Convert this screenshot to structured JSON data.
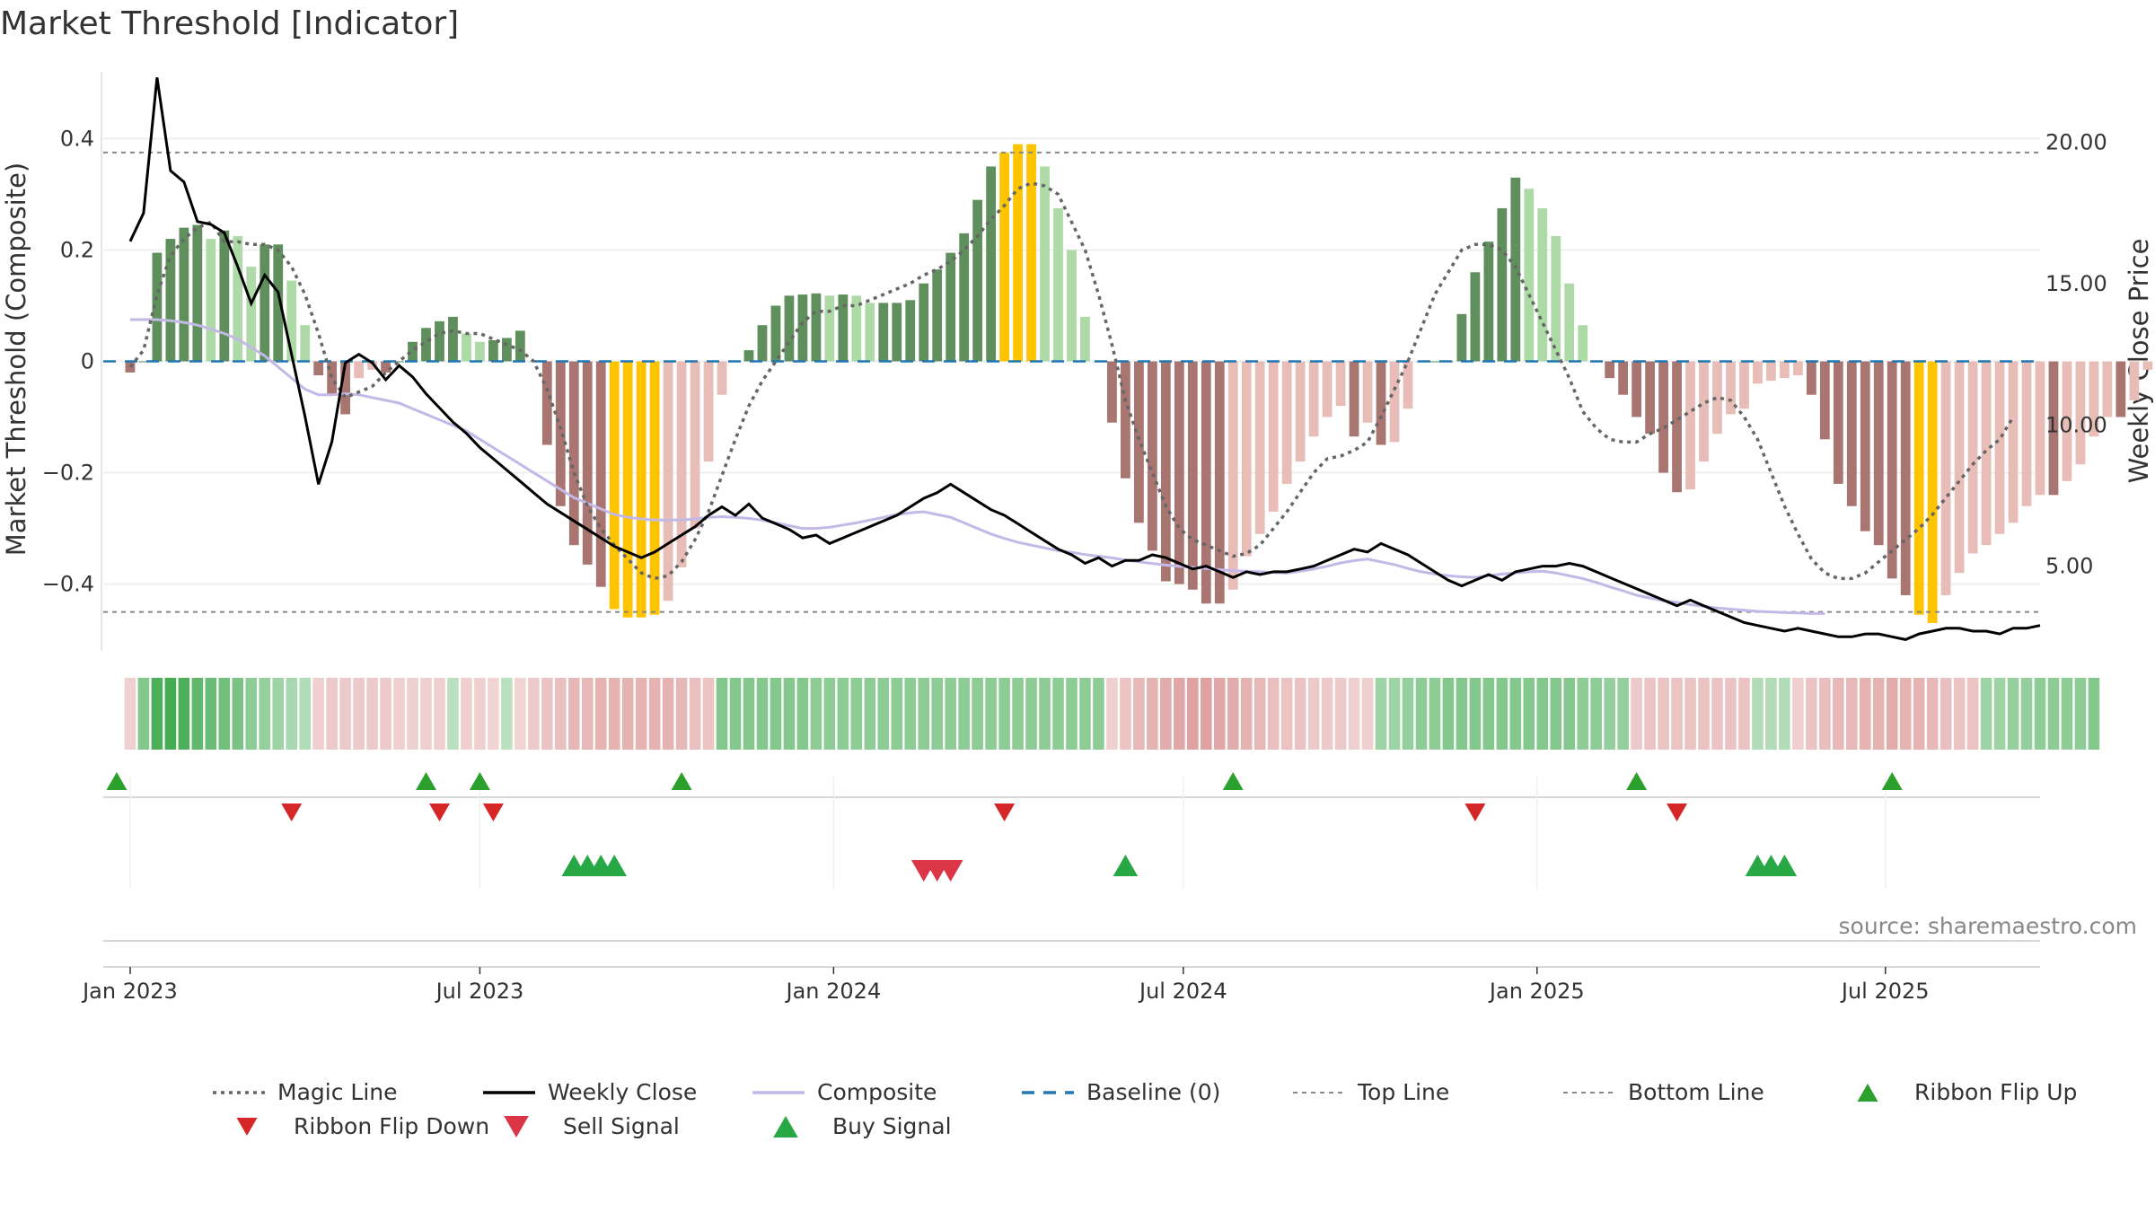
{
  "chart_data": {
    "type": "bar",
    "title": "Market Threshold [Indicator]",
    "ylabel_left": "Market Threshold (Composite)",
    "ylabel_right": "Weekly Close Price",
    "ylim_left": [
      -0.52,
      0.52
    ],
    "ylim_right": [
      2.0,
      22.5
    ],
    "left_ticks": [
      {
        "v": 0.4,
        "label": "0.4"
      },
      {
        "v": 0.2,
        "label": "0.2"
      },
      {
        "v": 0.0,
        "label": "0"
      },
      {
        "v": -0.2,
        "label": "−0.2"
      },
      {
        "v": -0.4,
        "label": "−0.4"
      }
    ],
    "right_ticks": [
      {
        "v": 20,
        "label": "20.00"
      },
      {
        "v": 15,
        "label": "15.00"
      },
      {
        "v": 10,
        "label": "10.00"
      },
      {
        "v": 5,
        "label": "5.00"
      }
    ],
    "x_week_range": [
      -2,
      142
    ],
    "x_ticks": [
      {
        "week": 0,
        "label": "Jan 2023"
      },
      {
        "week": 26,
        "label": "Jul 2023"
      },
      {
        "week": 52.3,
        "label": "Jan 2024"
      },
      {
        "week": 78.3,
        "label": "Jul 2024"
      },
      {
        "week": 104.6,
        "label": "Jan 2025"
      },
      {
        "week": 130.5,
        "label": "Jul 2025"
      }
    ],
    "top_line": 0.375,
    "bottom_line": -0.45,
    "baseline": 0,
    "composite_bars": [
      -0.02,
      0.0,
      0.195,
      0.22,
      0.24,
      0.245,
      0.22,
      0.235,
      0.225,
      0.17,
      0.21,
      0.21,
      0.145,
      0.065,
      -0.025,
      -0.06,
      -0.095,
      -0.03,
      -0.015,
      -0.02,
      0.0,
      0.035,
      0.06,
      0.072,
      0.08,
      0.05,
      0.035,
      0.038,
      0.042,
      0.055,
      0.0,
      -0.15,
      -0.26,
      -0.33,
      -0.365,
      -0.405,
      -0.445,
      -0.46,
      -0.46,
      -0.455,
      -0.43,
      -0.37,
      -0.3,
      -0.18,
      -0.06,
      0.0,
      0.02,
      0.065,
      0.1,
      0.118,
      0.12,
      0.122,
      0.118,
      0.12,
      0.118,
      0.105,
      0.105,
      0.105,
      0.11,
      0.14,
      0.165,
      0.195,
      0.23,
      0.29,
      0.35,
      0.375,
      0.39,
      0.39,
      0.35,
      0.275,
      0.2,
      0.08,
      0.0,
      -0.11,
      -0.21,
      -0.29,
      -0.34,
      -0.395,
      -0.4,
      -0.41,
      -0.435,
      -0.435,
      -0.41,
      -0.35,
      -0.31,
      -0.27,
      -0.22,
      -0.18,
      -0.135,
      -0.1,
      -0.08,
      -0.135,
      -0.11,
      -0.15,
      -0.145,
      -0.085,
      0.0,
      0.0,
      0.0,
      0.085,
      0.16,
      0.215,
      0.275,
      0.33,
      0.31,
      0.275,
      0.225,
      0.14,
      0.065,
      0.0,
      -0.03,
      -0.06,
      -0.1,
      -0.13,
      -0.2,
      -0.235,
      -0.23,
      -0.18,
      -0.13,
      -0.095,
      -0.085,
      -0.04,
      -0.035,
      -0.03,
      -0.025,
      -0.06,
      -0.14,
      -0.22,
      -0.26,
      -0.305,
      -0.33,
      -0.39,
      -0.42,
      -0.455,
      -0.47,
      -0.42,
      -0.38,
      -0.345,
      -0.33,
      -0.31,
      -0.29,
      -0.26,
      -0.24,
      -0.24,
      -0.215,
      -0.185,
      -0.135,
      -0.1,
      -0.1,
      -0.07,
      -0.015,
      0.02
    ],
    "series": [
      {
        "name": "Magic Line",
        "color": "#666666",
        "values": [
          -0.01,
          0.02,
          0.12,
          0.19,
          0.22,
          0.24,
          0.25,
          0.215,
          0.215,
          0.21,
          0.21,
          0.2,
          0.17,
          0.12,
          0.05,
          -0.03,
          -0.065,
          -0.055,
          -0.045,
          -0.02,
          0.0,
          0.02,
          0.035,
          0.05,
          0.055,
          0.05,
          0.05,
          0.04,
          0.03,
          0.02,
          0.0,
          -0.05,
          -0.12,
          -0.2,
          -0.26,
          -0.3,
          -0.33,
          -0.355,
          -0.38,
          -0.39,
          -0.385,
          -0.36,
          -0.32,
          -0.27,
          -0.205,
          -0.14,
          -0.08,
          -0.035,
          0.0,
          0.035,
          0.07,
          0.09,
          0.09,
          0.1,
          0.1,
          0.11,
          0.12,
          0.13,
          0.14,
          0.155,
          0.165,
          0.18,
          0.2,
          0.225,
          0.255,
          0.28,
          0.31,
          0.32,
          0.315,
          0.3,
          0.25,
          0.2,
          0.12,
          0.03,
          -0.07,
          -0.14,
          -0.2,
          -0.26,
          -0.3,
          -0.32,
          -0.33,
          -0.34,
          -0.35,
          -0.345,
          -0.33,
          -0.3,
          -0.27,
          -0.235,
          -0.2,
          -0.175,
          -0.17,
          -0.16,
          -0.145,
          -0.1,
          -0.05,
          0.0,
          0.06,
          0.12,
          0.16,
          0.2,
          0.21,
          0.21,
          0.2,
          0.17,
          0.12,
          0.07,
          0.02,
          -0.03,
          -0.09,
          -0.12,
          -0.14,
          -0.145,
          -0.145,
          -0.13,
          -0.12,
          -0.105,
          -0.09,
          -0.075,
          -0.065,
          -0.07,
          -0.1,
          -0.14,
          -0.2,
          -0.26,
          -0.31,
          -0.355,
          -0.38,
          -0.39,
          -0.39,
          -0.38,
          -0.36,
          -0.34,
          -0.32,
          -0.3,
          -0.275,
          -0.245,
          -0.215,
          -0.185,
          -0.16,
          -0.14,
          -0.1
        ]
      },
      {
        "name": "Weekly Close",
        "color": "#000000",
        "values": [
          16.5,
          17.5,
          22.3,
          19.0,
          18.6,
          17.2,
          17.1,
          16.8,
          15.6,
          14.3,
          15.3,
          14.7,
          12.5,
          10.3,
          7.9,
          9.4,
          12.2,
          12.5,
          12.2,
          11.6,
          12.1,
          11.7,
          11.1,
          10.6,
          10.1,
          9.7,
          9.2,
          8.8,
          8.4,
          8.0,
          7.6,
          7.2,
          6.9,
          6.6,
          6.3,
          6.0,
          5.7,
          5.5,
          5.3,
          5.5,
          5.8,
          6.1,
          6.4,
          6.8,
          7.1,
          6.8,
          7.2,
          6.7,
          6.5,
          6.3,
          6.0,
          6.1,
          5.8,
          6.0,
          6.2,
          6.4,
          6.6,
          6.8,
          7.1,
          7.4,
          7.6,
          7.9,
          7.6,
          7.3,
          7.0,
          6.8,
          6.5,
          6.2,
          5.9,
          5.6,
          5.4,
          5.1,
          5.3,
          5.0,
          5.2,
          5.2,
          5.4,
          5.3,
          5.1,
          4.9,
          5.0,
          4.8,
          4.6,
          4.8,
          4.7,
          4.8,
          4.8,
          4.9,
          5.0,
          5.2,
          5.4,
          5.6,
          5.5,
          5.8,
          5.6,
          5.4,
          5.1,
          4.8,
          4.5,
          4.3,
          4.5,
          4.7,
          4.5,
          4.8,
          4.9,
          5.0,
          5.0,
          5.1,
          5.0,
          4.8,
          4.6,
          4.4,
          4.2,
          4.0,
          3.8,
          3.6,
          3.8,
          3.6,
          3.4,
          3.2,
          3.0,
          2.9,
          2.8,
          2.7,
          2.8,
          2.7,
          2.6,
          2.5,
          2.5,
          2.6,
          2.6,
          2.5,
          2.4,
          2.6,
          2.7,
          2.8,
          2.8,
          2.7,
          2.7,
          2.6,
          2.8,
          2.8,
          2.9
        ]
      },
      {
        "name": "Composite",
        "color": "#c3b8e6",
        "values": [
          0.075,
          0.075,
          0.075,
          0.073,
          0.07,
          0.065,
          0.058,
          0.05,
          0.04,
          0.025,
          0.01,
          -0.01,
          -0.03,
          -0.05,
          -0.06,
          -0.06,
          -0.058,
          -0.06,
          -0.065,
          -0.07,
          -0.075,
          -0.085,
          -0.095,
          -0.105,
          -0.115,
          -0.125,
          -0.14,
          -0.155,
          -0.17,
          -0.185,
          -0.2,
          -0.215,
          -0.23,
          -0.245,
          -0.255,
          -0.265,
          -0.275,
          -0.28,
          -0.283,
          -0.285,
          -0.285,
          -0.285,
          -0.283,
          -0.28,
          -0.279,
          -0.28,
          -0.282,
          -0.285,
          -0.29,
          -0.295,
          -0.3,
          -0.3,
          -0.298,
          -0.294,
          -0.29,
          -0.285,
          -0.28,
          -0.275,
          -0.272,
          -0.27,
          -0.275,
          -0.28,
          -0.29,
          -0.3,
          -0.31,
          -0.318,
          -0.325,
          -0.33,
          -0.335,
          -0.34,
          -0.343,
          -0.347,
          -0.35,
          -0.353,
          -0.357,
          -0.36,
          -0.363,
          -0.366,
          -0.368,
          -0.37,
          -0.372,
          -0.374,
          -0.376,
          -0.377,
          -0.378,
          -0.379,
          -0.38,
          -0.377,
          -0.373,
          -0.368,
          -0.362,
          -0.358,
          -0.355,
          -0.36,
          -0.365,
          -0.372,
          -0.378,
          -0.382,
          -0.385,
          -0.387,
          -0.388,
          -0.385,
          -0.382,
          -0.38,
          -0.378,
          -0.377,
          -0.38,
          -0.385,
          -0.39,
          -0.397,
          -0.405,
          -0.412,
          -0.42,
          -0.425,
          -0.43,
          -0.433,
          -0.437,
          -0.44,
          -0.443,
          -0.445,
          -0.447,
          -0.449,
          -0.45,
          -0.451,
          -0.452,
          -0.453,
          -0.453
        ]
      },
      {
        "name": "Baseline (0)",
        "color": "#1f77b4",
        "values": [
          0
        ]
      },
      {
        "name": "Top Line",
        "color": "#888888",
        "values": [
          0.375
        ]
      },
      {
        "name": "Bottom Line",
        "color": "#888888",
        "values": [
          -0.45
        ]
      }
    ],
    "ribbon_strength": [
      -0.2,
      0.45,
      0.75,
      0.8,
      0.75,
      0.65,
      0.6,
      0.55,
      0.5,
      0.4,
      0.35,
      0.3,
      0.25,
      0.2,
      -0.2,
      -0.25,
      -0.25,
      -0.25,
      -0.25,
      -0.25,
      -0.2,
      -0.2,
      -0.2,
      -0.2,
      0.15,
      -0.2,
      -0.2,
      -0.15,
      0.15,
      -0.15,
      -0.25,
      -0.3,
      -0.35,
      -0.4,
      -0.4,
      -0.45,
      -0.45,
      -0.45,
      -0.45,
      -0.45,
      -0.45,
      -0.4,
      -0.35,
      -0.3,
      0.45,
      0.45,
      0.45,
      0.45,
      0.45,
      0.45,
      0.45,
      0.4,
      0.4,
      0.4,
      0.4,
      0.4,
      0.4,
      0.4,
      0.4,
      0.4,
      0.4,
      0.4,
      0.4,
      0.4,
      0.4,
      0.4,
      0.4,
      0.4,
      0.4,
      0.4,
      0.4,
      0.4,
      0.4,
      -0.2,
      -0.3,
      -0.4,
      -0.45,
      -0.5,
      -0.55,
      -0.6,
      -0.6,
      -0.55,
      -0.5,
      -0.45,
      -0.4,
      -0.35,
      -0.3,
      -0.3,
      -0.25,
      -0.25,
      -0.25,
      -0.2,
      -0.2,
      0.3,
      0.3,
      0.35,
      0.4,
      0.4,
      0.45,
      0.45,
      0.45,
      0.45,
      0.45,
      0.45,
      0.45,
      0.45,
      0.45,
      0.45,
      0.4,
      0.4,
      0.35,
      0.35,
      -0.25,
      -0.3,
      -0.3,
      -0.3,
      -0.3,
      -0.3,
      -0.3,
      -0.3,
      -0.3,
      0.2,
      0.2,
      0.2,
      -0.2,
      -0.3,
      -0.35,
      -0.4,
      -0.4,
      -0.45,
      -0.45,
      -0.5,
      -0.45,
      -0.45,
      -0.4,
      -0.35,
      -0.3,
      -0.3,
      0.3,
      0.3,
      0.35,
      0.35,
      0.4,
      0.4,
      0.4,
      0.4,
      0.45
    ],
    "ribbon_flip_up_weeks": [
      -1,
      22,
      26,
      41,
      82,
      112,
      131
    ],
    "ribbon_flip_down_weeks": [
      12,
      23,
      27,
      65,
      100,
      115
    ],
    "buy_signal_weeks": [
      33,
      34,
      35,
      36,
      74,
      121,
      122,
      123
    ],
    "sell_signal_weeks": [
      59,
      60,
      61
    ],
    "legend": [
      {
        "label": "Magic Line",
        "style": "dotted",
        "color": "#666666"
      },
      {
        "label": "Weekly Close",
        "style": "solid",
        "color": "#000000"
      },
      {
        "label": "Composite",
        "style": "solid",
        "color": "#c3b8e6"
      },
      {
        "label": "Baseline (0)",
        "style": "dashed",
        "color": "#1f77b4"
      },
      {
        "label": "Top Line",
        "style": "dashed-thin",
        "color": "#888888"
      },
      {
        "label": "Bottom Line",
        "style": "dashed-thin",
        "color": "#888888"
      },
      {
        "label": "Ribbon Flip Up",
        "style": "tri-up",
        "color": "#2ca02c"
      },
      {
        "label": "Ribbon Flip Down",
        "style": "tri-down",
        "color": "#d62728"
      },
      {
        "label": "Sell Signal",
        "style": "tri-down-big",
        "color": "#dc3545"
      },
      {
        "label": "Buy Signal",
        "style": "tri-up-big",
        "color": "#28a745"
      }
    ],
    "source": "source: sharemaestro.com"
  }
}
